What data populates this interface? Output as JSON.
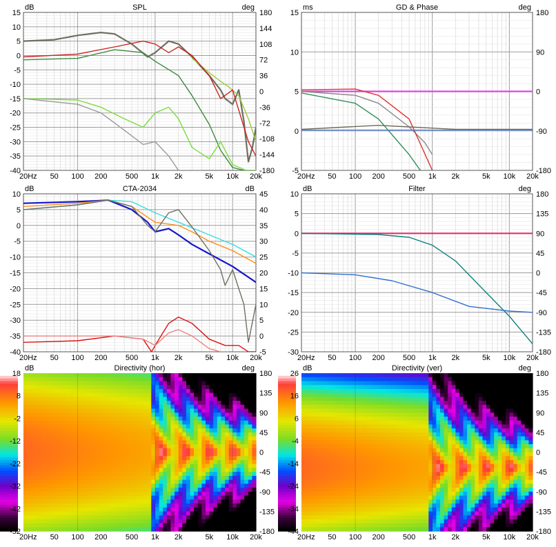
{
  "panels": {
    "spl": {
      "title": "SPL",
      "left_unit": "dB",
      "right_unit": "deg",
      "left_ticks": [
        "15",
        "10",
        "5",
        "0",
        "-5",
        "-10",
        "-15",
        "-20",
        "-25",
        "-30",
        "-35",
        "-40"
      ],
      "right_ticks": [
        "180",
        "144",
        "108",
        "72",
        "36",
        "0",
        "-36",
        "-72",
        "-108",
        "-144",
        "-180"
      ],
      "x_ticks": [
        "20Hz",
        "50",
        "100",
        "200",
        "500",
        "1k",
        "2k",
        "5k",
        "10k",
        "20k"
      ]
    },
    "gd": {
      "title": "GD & Phase",
      "left_unit": "ms",
      "right_unit": "deg",
      "left_ticks": [
        "15",
        "10",
        "5",
        "0",
        "-5"
      ],
      "right_ticks": [
        "180",
        "90",
        "0",
        "-90",
        "-180"
      ],
      "x_ticks": [
        "20Hz",
        "50",
        "100",
        "200",
        "500",
        "1k",
        "2k",
        "5k",
        "10k",
        "20k"
      ]
    },
    "cta": {
      "title": "CTA-2034",
      "left_unit": "dB",
      "right_unit": "dB",
      "left_ticks": [
        "10",
        "5",
        "0",
        "-5",
        "-10",
        "-15",
        "-20",
        "-25",
        "-30",
        "-35",
        "-40"
      ],
      "right_ticks": [
        "45",
        "40",
        "35",
        "30",
        "25",
        "20",
        "15",
        "10",
        "5",
        "0",
        "-5"
      ],
      "x_ticks": [
        "20Hz",
        "50",
        "100",
        "200",
        "500",
        "1k",
        "2k",
        "5k",
        "10k",
        "20k"
      ]
    },
    "filter": {
      "title": "Filter",
      "left_unit": "dB",
      "right_unit": "deg",
      "left_ticks": [
        "10",
        "5",
        "0",
        "-5",
        "-10",
        "-15",
        "-20",
        "-25",
        "-30"
      ],
      "right_ticks": [
        "180",
        "135",
        "90",
        "45",
        "0",
        "-45",
        "-90",
        "-135",
        "-180"
      ],
      "x_ticks": [
        "20Hz",
        "50",
        "100",
        "200",
        "500",
        "1k",
        "2k",
        "5k",
        "10k",
        "20k"
      ]
    },
    "dir_hor": {
      "title": "Directivity (hor)",
      "left_unit": "dB",
      "right_unit": "deg",
      "left_ticks": [
        "18",
        "8",
        "-2",
        "-12",
        "-22",
        "-32",
        "-42",
        "-52"
      ],
      "right_ticks": [
        "180",
        "135",
        "90",
        "45",
        "0",
        "-45",
        "-90",
        "-135",
        "-180"
      ],
      "x_ticks": [
        "20Hz",
        "50",
        "100",
        "200",
        "500",
        "1k",
        "2k",
        "5k",
        "10k",
        "20k"
      ]
    },
    "dir_ver": {
      "title": "Directivity (ver)",
      "left_unit": "dB",
      "right_unit": "deg",
      "left_ticks": [
        "26",
        "16",
        "6",
        "-4",
        "-14",
        "-24",
        "-34",
        "-44"
      ],
      "right_ticks": [
        "180",
        "135",
        "90",
        "45",
        "0",
        "-45",
        "-90",
        "-135",
        "-180"
      ],
      "x_ticks": [
        "20Hz",
        "50",
        "100",
        "200",
        "500",
        "1k",
        "2k",
        "5k",
        "10k",
        "20k"
      ]
    }
  },
  "chart_data": [
    {
      "type": "line",
      "title": "SPL",
      "ylim": [
        -40,
        15
      ],
      "y2lim": [
        -180,
        180
      ],
      "xlim": [
        20,
        20000
      ],
      "xscale": "log",
      "series": [
        {
          "color": "#6e6e60",
          "x": [
            20,
            50,
            100,
            200,
            300,
            500,
            800,
            1000,
            1500,
            2000,
            3000,
            5000,
            7000,
            8000,
            10000,
            12000,
            14000,
            16000,
            18000,
            20000
          ],
          "y": [
            5,
            5.5,
            7,
            8,
            7.5,
            4,
            -0.5,
            1,
            5,
            4,
            -0.5,
            -7,
            -12,
            -15,
            -17,
            -12,
            -23,
            -37,
            -32,
            -25
          ]
        },
        {
          "color": "#9acd32",
          "x": [
            3000,
            5000,
            7000,
            9000,
            12000,
            16000,
            20000
          ],
          "y": [
            -1,
            -6,
            -9,
            -11,
            -14,
            -22,
            -30
          ]
        },
        {
          "color": "#cc2222",
          "x": [
            20,
            100,
            300,
            700,
            1000,
            1500,
            2000,
            3000,
            5000,
            7000,
            10000,
            16000,
            20000
          ],
          "y": [
            -0.5,
            0.5,
            3,
            5,
            4,
            1,
            3,
            0,
            -7,
            -15,
            -12,
            -30,
            -35
          ]
        },
        {
          "color": "#3a8a3a",
          "x": [
            20,
            100,
            300,
            700,
            1000,
            2000,
            3000,
            5000,
            7000,
            10000,
            14000,
            20000
          ],
          "y": [
            -1.5,
            -1,
            2,
            1,
            -2,
            -7,
            -14,
            -24,
            -33,
            -39,
            -40,
            -40
          ]
        },
        {
          "color": "#7cdc3c",
          "x": [
            20,
            100,
            200,
            400,
            700,
            1000,
            1500,
            2000,
            3000,
            5000,
            7000,
            10000,
            15000,
            20000
          ],
          "y": [
            -15,
            -15.5,
            -18,
            -22,
            -25,
            -20,
            -18,
            -22,
            -32,
            -36,
            -30,
            -38,
            -40,
            -40
          ]
        },
        {
          "color": "#999999",
          "x": [
            20,
            100,
            200,
            400,
            700,
            1000,
            1500,
            2000,
            3000,
            4000
          ],
          "y": [
            -15,
            -17,
            -20,
            -26,
            -31,
            -30,
            -35,
            -40,
            -40,
            -40
          ]
        }
      ]
    },
    {
      "type": "line",
      "title": "GD & Phase",
      "ylim": [
        -5,
        15
      ],
      "y2lim": [
        -180,
        180
      ],
      "xlim": [
        20,
        20000
      ],
      "xscale": "log",
      "series": [
        {
          "color": "#dd44dd",
          "x": [
            20,
            20000
          ],
          "y": [
            5,
            5
          ]
        },
        {
          "color": "#2e8b57",
          "x": [
            20,
            100,
            200,
            500,
            700
          ],
          "y": [
            4.8,
            3.5,
            1.5,
            -3,
            -5
          ]
        },
        {
          "color": "#888888",
          "x": [
            20,
            100,
            200,
            500,
            800,
            1000
          ],
          "y": [
            5,
            4.5,
            3.5,
            0.5,
            -1.5,
            -3
          ]
        },
        {
          "color": "#dd3333",
          "x": [
            20,
            100,
            200,
            500,
            1000
          ],
          "y": [
            5.2,
            5.3,
            4.5,
            1.5,
            -5
          ]
        },
        {
          "color": "#6a6a5a",
          "x": [
            20,
            200,
            500,
            2000,
            20000
          ],
          "y": [
            0.2,
            0.7,
            0.5,
            0.2,
            0.2
          ]
        },
        {
          "color": "#4f7fdf",
          "x": [
            20,
            20000
          ],
          "y": [
            0.1,
            0.1
          ]
        }
      ]
    },
    {
      "type": "line",
      "title": "CTA-2034",
      "ylim": [
        -40,
        10
      ],
      "y2lim": [
        -5,
        45
      ],
      "xlim": [
        20,
        20000
      ],
      "xscale": "log",
      "series": [
        {
          "color": "#1515cc",
          "x": [
            20,
            100,
            250,
            500,
            800,
            1000,
            1500,
            2000,
            3000,
            5000,
            10000,
            20000
          ],
          "y": [
            7,
            7.5,
            8,
            5,
            1,
            -2,
            -1,
            -3,
            -6,
            -9,
            -13,
            -18
          ]
        },
        {
          "color": "#ff8c1a",
          "x": [
            20,
            100,
            250,
            500,
            1000,
            2000,
            3000,
            5000,
            10000,
            20000
          ],
          "y": [
            6,
            7,
            8,
            6,
            1,
            0,
            -2,
            -5,
            -8,
            -12
          ]
        },
        {
          "color": "#33e0e0",
          "x": [
            20,
            100,
            250,
            500,
            1000,
            2000,
            5000,
            10000,
            20000
          ],
          "y": [
            5,
            6.5,
            8,
            7.5,
            4,
            1,
            -3,
            -6,
            -10
          ]
        },
        {
          "color": "#6e6e60",
          "x": [
            20,
            100,
            250,
            500,
            800,
            1000,
            1500,
            2000,
            3000,
            5000,
            7000,
            8000,
            10000,
            14000,
            16000,
            20000
          ],
          "y": [
            5,
            6.5,
            8,
            6,
            0,
            -2,
            4,
            5,
            -0.5,
            -8,
            -14,
            -19,
            -14,
            -25,
            -37,
            -25
          ]
        },
        {
          "color": "#dd1111",
          "x": [
            20,
            100,
            300,
            700,
            900,
            1000,
            1500,
            2000,
            3000,
            5000,
            8000,
            12000,
            16000,
            20000
          ],
          "y": [
            -37,
            -36.5,
            -35,
            -36,
            -40,
            -38,
            -31,
            -29,
            -31,
            -36,
            -38,
            -38,
            -40,
            -40
          ]
        },
        {
          "color": "#f08080",
          "x": [
            20,
            100,
            300,
            700,
            1000,
            1500,
            2000,
            3000,
            5000,
            7000,
            9000
          ],
          "y": [
            -35,
            -35,
            -35,
            -36,
            -38,
            -34,
            -33,
            -35,
            -39,
            -40,
            -40
          ]
        }
      ]
    },
    {
      "type": "line",
      "title": "Filter",
      "ylim": [
        -30,
        10
      ],
      "y2lim": [
        -180,
        180
      ],
      "xlim": [
        20,
        20000
      ],
      "xscale": "log",
      "series": [
        {
          "color": "#e0306a",
          "x": [
            20,
            20000
          ],
          "y": [
            0,
            0
          ]
        },
        {
          "color": "#108080",
          "x": [
            20,
            200,
            500,
            1000,
            2000,
            5000,
            10000,
            20000
          ],
          "y": [
            0,
            -0.3,
            -1,
            -3,
            -7,
            -15,
            -21,
            -28
          ]
        },
        {
          "color": "#3070d0",
          "x": [
            20,
            100,
            300,
            1000,
            3000,
            10000,
            20000
          ],
          "y": [
            -10,
            -10.5,
            -12,
            -15,
            -18.5,
            -19.7,
            -20
          ]
        }
      ]
    },
    {
      "type": "heatmap",
      "title": "Directivity (hor)",
      "zlim": [
        -52,
        18
      ],
      "ylim": [
        -180,
        180
      ],
      "xlim": [
        20,
        20000
      ]
    },
    {
      "type": "heatmap",
      "title": "Directivity (ver)",
      "zlim": [
        -44,
        26
      ],
      "ylim": [
        -180,
        180
      ],
      "xlim": [
        20,
        20000
      ]
    }
  ]
}
